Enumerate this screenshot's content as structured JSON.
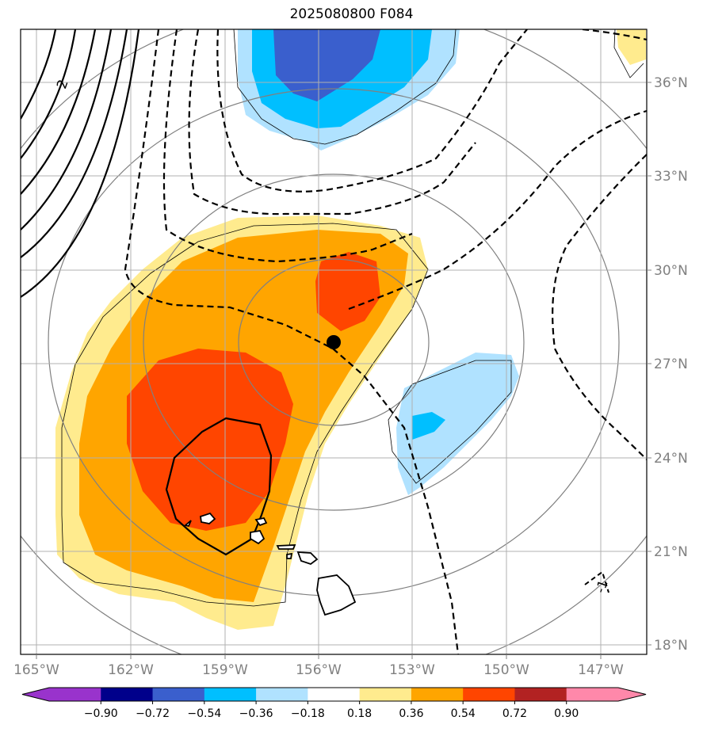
{
  "title": "2025080800 F084",
  "map": {
    "lat_range": [
      17.7,
      37.7
    ],
    "lon_range": [
      -165.5,
      -145.5
    ],
    "lat_ticks": [
      "36°N",
      "33°N",
      "30°N",
      "27°N",
      "24°N",
      "21°N",
      "18°N"
    ],
    "lon_ticks": [
      "165°W",
      "162°W",
      "159°W",
      "156°W",
      "153°W",
      "150°W",
      "147°W"
    ],
    "contour_labels": [
      "2",
      "-1"
    ],
    "marker": {
      "lon": -155.5,
      "lat": 27.65
    }
  },
  "colorbar": {
    "ticks": [
      "−0.90",
      "−0.72",
      "−0.54",
      "−0.36",
      "−0.18",
      "0.18",
      "0.36",
      "0.54",
      "0.72",
      "0.90"
    ],
    "colors": [
      "#9933cc",
      "#00008b",
      "#3a5fcd",
      "#00bfff",
      "#b0e2ff",
      "#ffffff",
      "#ffeb8e",
      "#ffa500",
      "#ff4500",
      "#b22222",
      "#ff88aa"
    ],
    "extend_under": "#9933cc",
    "extend_over": "#ff88aa"
  }
}
